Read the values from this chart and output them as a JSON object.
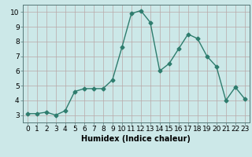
{
  "x": [
    0,
    1,
    2,
    3,
    4,
    5,
    6,
    7,
    8,
    9,
    10,
    11,
    12,
    13,
    14,
    15,
    16,
    17,
    18,
    19,
    20,
    21,
    22,
    23
  ],
  "y": [
    3.1,
    3.1,
    3.2,
    3.0,
    3.3,
    4.6,
    4.8,
    4.8,
    4.8,
    5.4,
    7.6,
    9.9,
    10.1,
    9.3,
    6.0,
    6.5,
    7.5,
    8.5,
    8.2,
    7.0,
    6.3,
    4.0,
    4.9,
    4.1
  ],
  "line_color": "#2e7d6e",
  "marker": "D",
  "marker_size": 2.5,
  "bg_color": "#cce8e8",
  "grid_color": "#b8a8a8",
  "xlabel": "Humidex (Indice chaleur)",
  "ylim": [
    2.5,
    10.5
  ],
  "xlim": [
    -0.5,
    23.5
  ],
  "yticks": [
    3,
    4,
    5,
    6,
    7,
    8,
    9,
    10
  ],
  "xticks": [
    0,
    1,
    2,
    3,
    4,
    5,
    6,
    7,
    8,
    9,
    10,
    11,
    12,
    13,
    14,
    15,
    16,
    17,
    18,
    19,
    20,
    21,
    22,
    23
  ],
  "xlabel_fontsize": 7,
  "tick_fontsize": 6.5,
  "line_width": 1.0
}
